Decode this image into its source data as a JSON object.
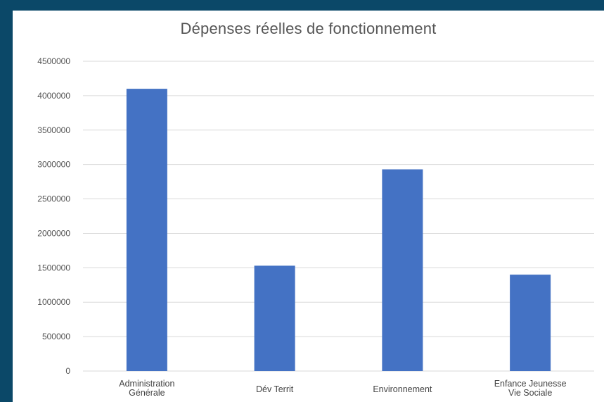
{
  "chart_data": {
    "type": "bar",
    "title": "Dépenses réelles de fonctionnement",
    "categories": [
      [
        "Administration",
        "Générale"
      ],
      [
        "Dév Territ"
      ],
      [
        "Environnement"
      ],
      [
        "Enfance Jeunesse",
        "Vie Sociale"
      ]
    ],
    "values": [
      4100000,
      1530000,
      2930000,
      1400000
    ],
    "ylim": [
      0,
      4500000
    ],
    "yticks": [
      0,
      500000,
      1000000,
      1500000,
      2000000,
      2500000,
      3000000,
      3500000,
      4000000,
      4500000
    ],
    "ytick_labels": [
      "0",
      "500000",
      "1000000",
      "1500000",
      "2000000",
      "2500000",
      "3000000",
      "3500000",
      "4000000",
      "4500000"
    ],
    "grid": true,
    "bar_color": "#4472c4",
    "grid_color": "#d9d9d9",
    "xlabel": "",
    "ylabel": ""
  }
}
